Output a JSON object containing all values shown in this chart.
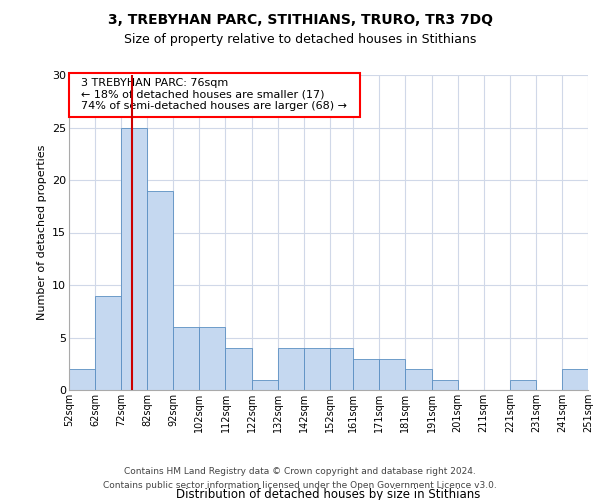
{
  "title1": "3, TREBYHAN PARC, STITHIANS, TRURO, TR3 7DQ",
  "title2": "Size of property relative to detached houses in Stithians",
  "xlabel": "Distribution of detached houses by size in Stithians",
  "ylabel": "Number of detached properties",
  "footnote1": "Contains HM Land Registry data © Crown copyright and database right 2024.",
  "footnote2": "Contains public sector information licensed under the Open Government Licence v3.0.",
  "annotation_line1": "3 TREBYHAN PARC: 76sqm",
  "annotation_line2": "← 18% of detached houses are smaller (17)",
  "annotation_line3": "74% of semi-detached houses are larger (68) →",
  "bar_color": "#c5d8f0",
  "bar_edge_color": "#5a8fc2",
  "vline_color": "#cc0000",
  "vline_x": 76,
  "bin_edges": [
    52,
    62,
    72,
    82,
    92,
    102,
    112,
    122,
    132,
    142,
    152,
    161,
    171,
    181,
    191,
    201,
    211,
    221,
    231,
    241,
    251
  ],
  "bar_heights": [
    2,
    9,
    25,
    19,
    6,
    6,
    4,
    1,
    4,
    4,
    4,
    3,
    3,
    2,
    1,
    0,
    0,
    1,
    0,
    2
  ],
  "xlim": [
    52,
    251
  ],
  "ylim": [
    0,
    30
  ],
  "yticks": [
    0,
    5,
    10,
    15,
    20,
    25,
    30
  ],
  "xtick_labels": [
    "52sqm",
    "62sqm",
    "72sqm",
    "82sqm",
    "92sqm",
    "102sqm",
    "112sqm",
    "122sqm",
    "132sqm",
    "142sqm",
    "152sqm",
    "161sqm",
    "171sqm",
    "181sqm",
    "191sqm",
    "201sqm",
    "211sqm",
    "221sqm",
    "231sqm",
    "241sqm",
    "251sqm"
  ],
  "background_color": "#ffffff",
  "grid_color": "#d0d8e8",
  "title1_fontsize": 10,
  "title2_fontsize": 9,
  "footnote_fontsize": 6.5,
  "ylabel_fontsize": 8,
  "xlabel_fontsize": 8.5,
  "annotation_fontsize": 8
}
